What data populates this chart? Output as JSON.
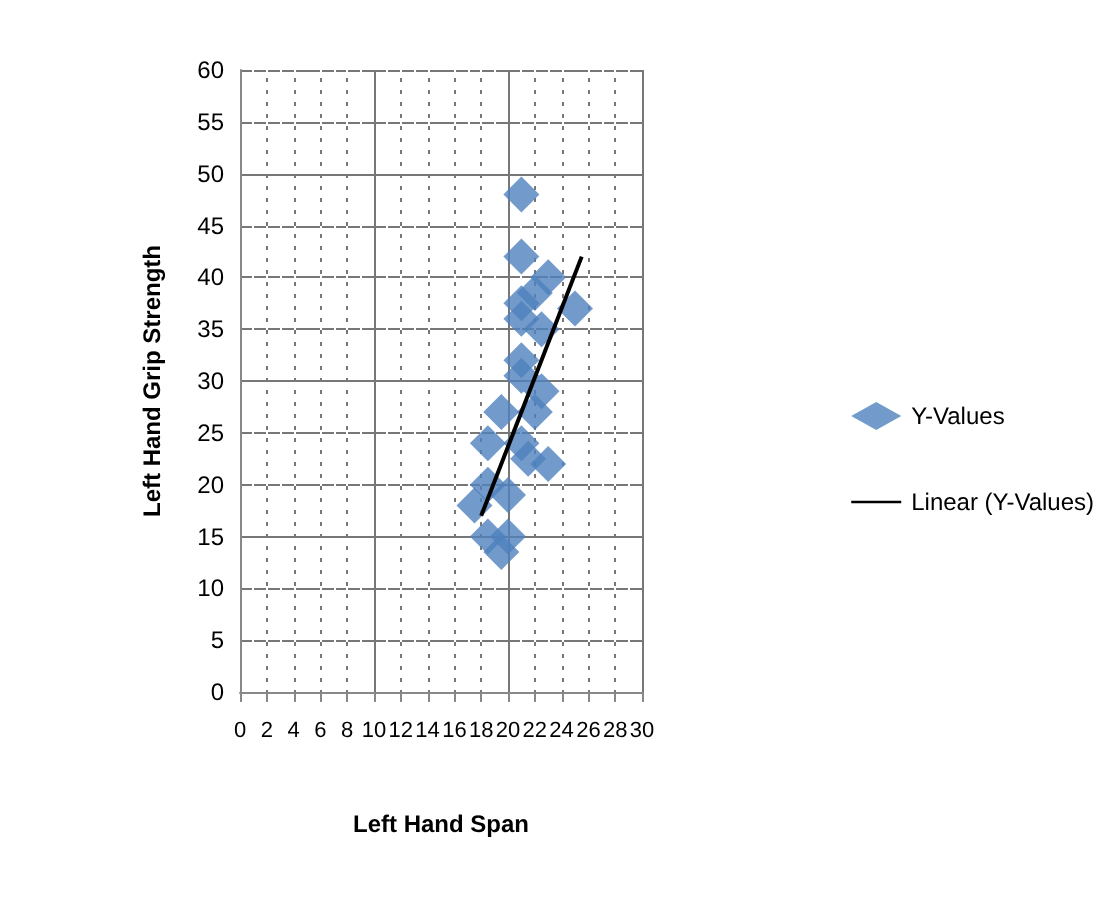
{
  "chart_data": {
    "type": "scatter",
    "xlabel": "Left Hand Span",
    "ylabel": "Left Hand Grip Strength",
    "xlim": [
      0,
      30
    ],
    "ylim": [
      0,
      60
    ],
    "xticks": [
      0,
      2,
      4,
      6,
      8,
      10,
      12,
      14,
      16,
      18,
      20,
      22,
      24,
      26,
      28,
      30
    ],
    "yticks": [
      0,
      5,
      10,
      15,
      20,
      25,
      30,
      35,
      40,
      45,
      50,
      55,
      60
    ],
    "grid": true,
    "legend": "right",
    "marker": "diamond",
    "series": [
      {
        "name": "Y-Values",
        "color": "#4f81bd",
        "x": [
          21,
          21,
          23,
          22,
          21,
          25,
          22.5,
          21,
          21,
          21,
          22.5,
          22,
          19.5,
          18.5,
          21,
          23,
          21.5,
          18.5,
          20,
          17.5,
          18.5,
          20,
          19.5
        ],
        "values": [
          48,
          42,
          40,
          38.5,
          37.5,
          37,
          35,
          36,
          32,
          30.5,
          29,
          27,
          27,
          24,
          24,
          22,
          22.5,
          20,
          19,
          18,
          15,
          15,
          13.5
        ]
      },
      {
        "name": "Linear (Y-Values)",
        "type": "line",
        "color": "#000000",
        "marker": "none",
        "x": [
          18,
          25.5
        ],
        "values": [
          17,
          42
        ]
      }
    ]
  }
}
